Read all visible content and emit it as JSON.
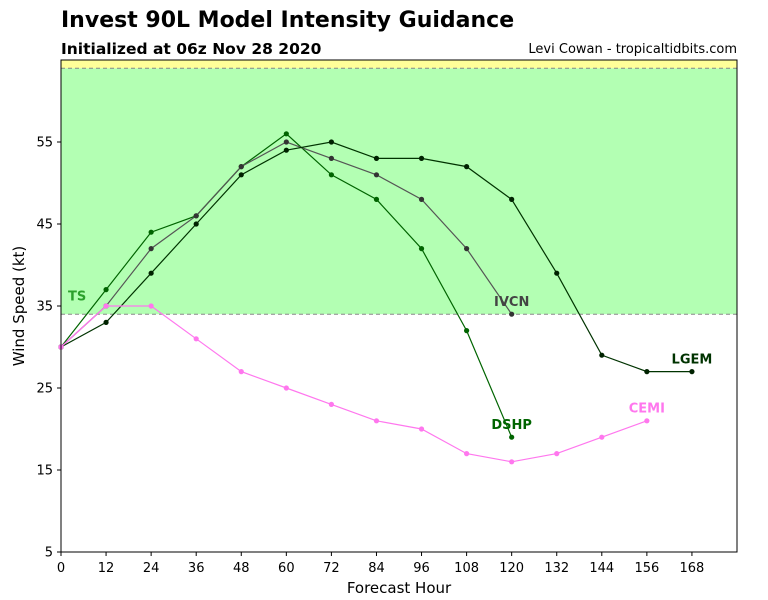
{
  "chart_data": {
    "type": "line",
    "title": "Invest 90L Model Intensity Guidance",
    "subtitle": "Initialized at 06z Nov 28 2020",
    "credit": "Levi Cowan - tropicaltidbits.com",
    "xlabel": "Forecast Hour",
    "ylabel": "Wind Speed (kt)",
    "xlim": [
      0,
      180
    ],
    "ylim": [
      5,
      65
    ],
    "xticks": [
      0,
      12,
      24,
      36,
      48,
      60,
      72,
      84,
      96,
      108,
      120,
      132,
      144,
      156,
      168
    ],
    "yticks": [
      5,
      15,
      25,
      35,
      45,
      55
    ],
    "grid": false,
    "bands": [
      {
        "from": 34,
        "to": 64,
        "color": "#b3ffb3",
        "label": "TS",
        "label_color": "#2ca02c"
      },
      {
        "from": 64,
        "to": 65,
        "color": "#ffff99",
        "label": "",
        "label_color": "#999900"
      }
    ],
    "series": [
      {
        "name": "DSHP",
        "color": "#006400",
        "marker_color": "#006400",
        "label_color": "#006400",
        "x": [
          0,
          12,
          24,
          36,
          48,
          60,
          72,
          84,
          96,
          108,
          120
        ],
        "y": [
          30,
          37,
          44,
          46,
          52,
          56,
          51,
          48,
          42,
          32,
          19
        ]
      },
      {
        "name": "IVCN",
        "color": "#555555",
        "marker_color": "#333333",
        "label_color": "#444444",
        "x": [
          0,
          12,
          24,
          36,
          48,
          60,
          72,
          84,
          96,
          108,
          120
        ],
        "y": [
          30,
          35,
          42,
          46,
          52,
          55,
          53,
          51,
          48,
          42,
          34
        ]
      },
      {
        "name": "LGEM",
        "color": "#003300",
        "marker_color": "#002200",
        "label_color": "#003300",
        "x": [
          0,
          12,
          24,
          36,
          48,
          60,
          72,
          84,
          96,
          108,
          120,
          132,
          144,
          156,
          168
        ],
        "y": [
          30,
          33,
          39,
          45,
          51,
          54,
          55,
          53,
          53,
          52,
          48,
          39,
          29,
          27,
          27
        ]
      },
      {
        "name": "CEMI",
        "color": "#ff77ee",
        "marker_color": "#ff77ee",
        "label_color": "#ff77ee",
        "x": [
          0,
          12,
          24,
          36,
          48,
          60,
          72,
          84,
          96,
          108,
          120,
          132,
          144,
          156
        ],
        "y": [
          30,
          35,
          35,
          31,
          27,
          25,
          23,
          21,
          20,
          17,
          16,
          17,
          19,
          21
        ]
      }
    ]
  }
}
